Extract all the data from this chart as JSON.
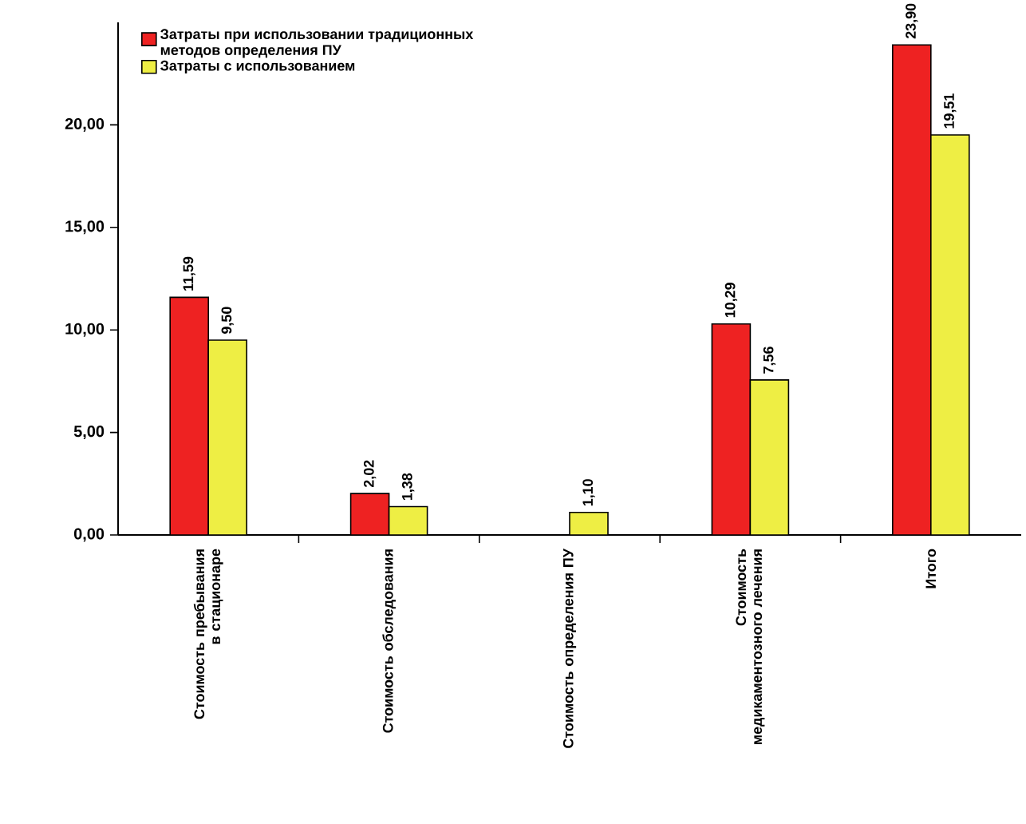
{
  "chart_data": {
    "type": "bar",
    "categories": [
      "Стоимость пребывания в стационаре",
      "Стоимость обследования",
      "Стоимость определения ПУ",
      "Стоимость медикаментозного лечения",
      "Итого"
    ],
    "series": [
      {
        "name": "Затраты при использовании традиционных методов определения ПУ",
        "color": "#ee2222",
        "values": [
          11.59,
          2.02,
          null,
          10.29,
          23.9
        ],
        "value_labels": [
          "11,59",
          "2,02",
          null,
          "10,29",
          "23,90"
        ]
      },
      {
        "name": "Затраты с использованием",
        "color": "#eeee44",
        "values": [
          9.5,
          1.38,
          1.1,
          7.56,
          19.51
        ],
        "value_labels": [
          "9,50",
          "1,38",
          "1,10",
          "7,56",
          "19,51"
        ]
      }
    ],
    "ylim": [
      0,
      25
    ],
    "yticks": [
      {
        "value": 0,
        "label": "0,00"
      },
      {
        "value": 5,
        "label": "5,00"
      },
      {
        "value": 10,
        "label": "10,00"
      },
      {
        "value": 15,
        "label": "15,00"
      },
      {
        "value": 20,
        "label": "20,00"
      }
    ],
    "grid": false,
    "legend": "top left"
  }
}
